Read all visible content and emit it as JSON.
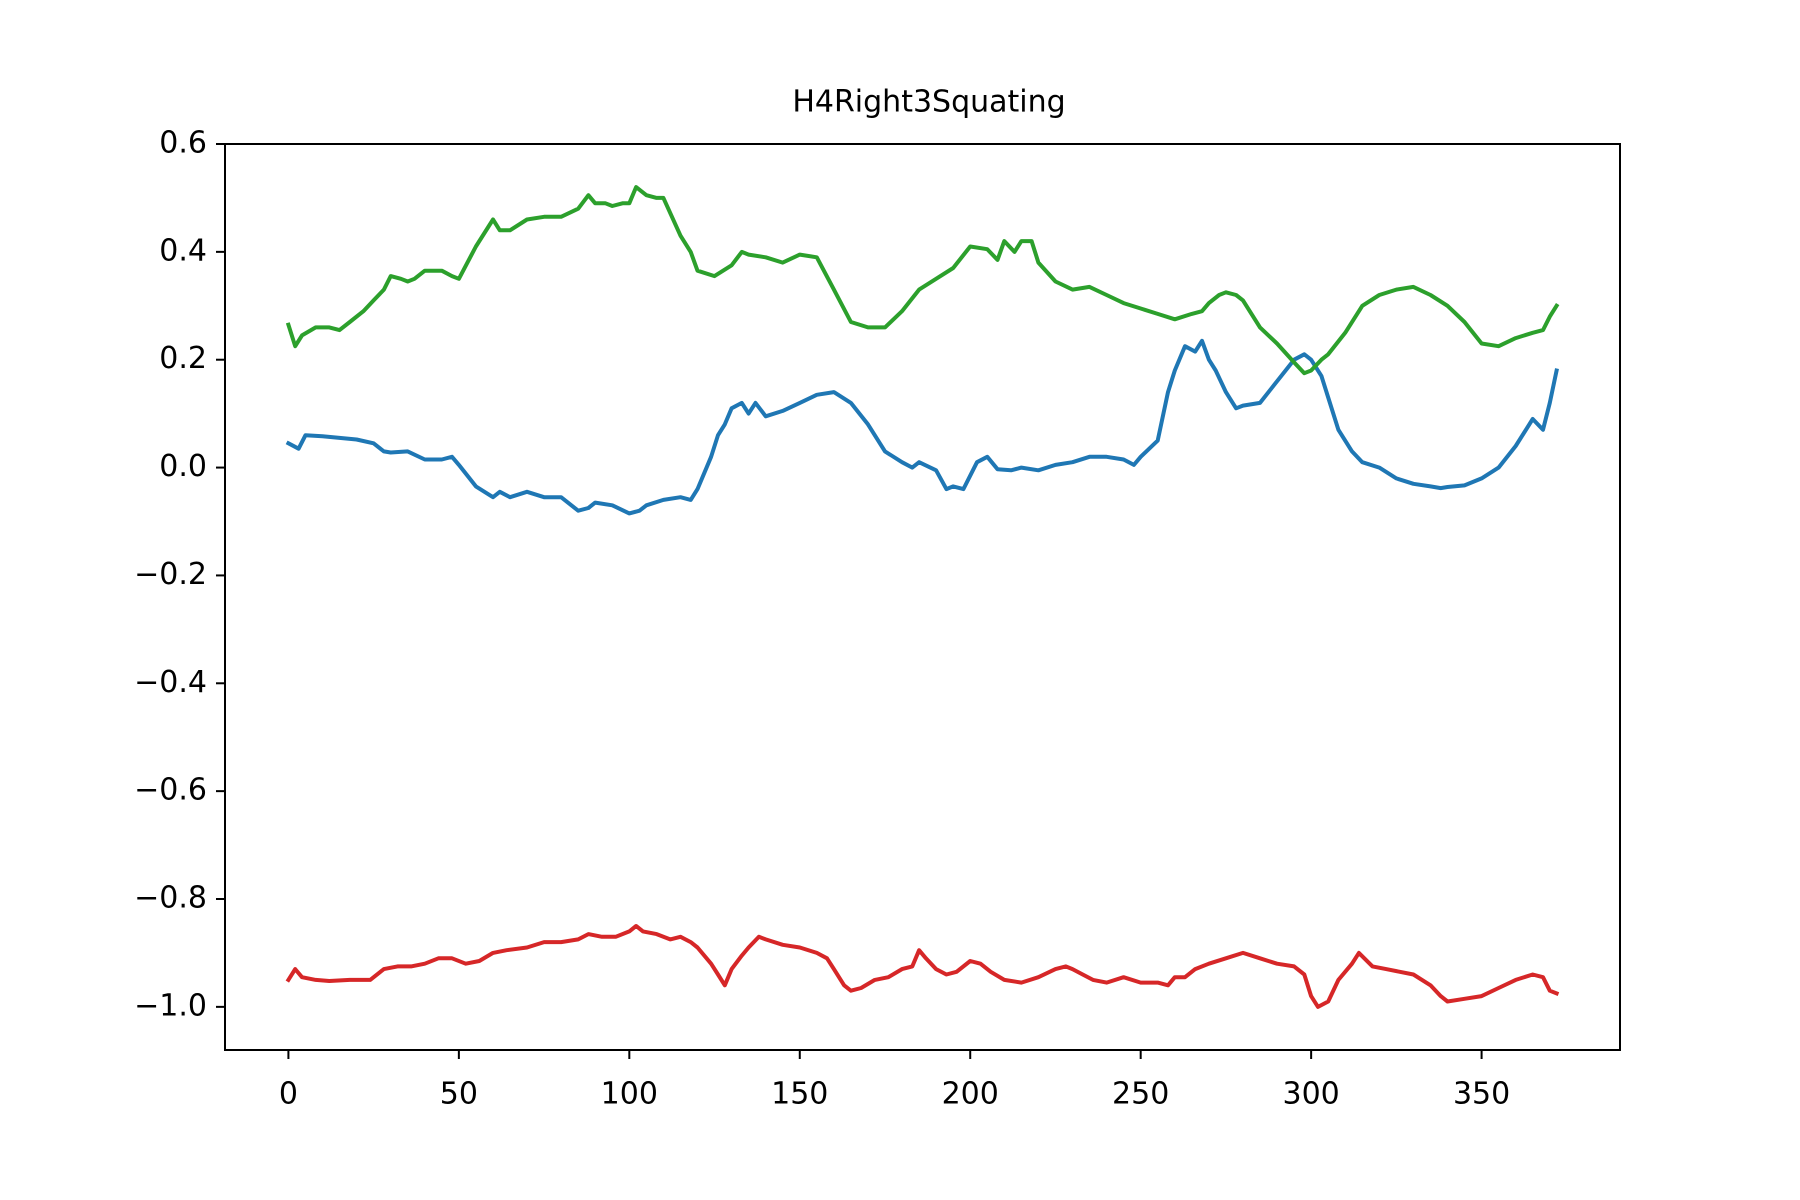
{
  "chart_data": {
    "type": "line",
    "title": "H4Right3Squating",
    "xlabel": "",
    "ylabel": "",
    "xlim": [
      -18.6,
      390.6
    ],
    "ylim": [
      -1.08,
      0.6
    ],
    "x_ticks": [
      0,
      50,
      100,
      150,
      200,
      250,
      300,
      350
    ],
    "y_ticks": [
      -1.0,
      -0.8,
      -0.6,
      -0.4,
      -0.2,
      0.0,
      0.2,
      0.4,
      0.6
    ],
    "x_tick_labels": [
      "0",
      "50",
      "100",
      "150",
      "200",
      "250",
      "300",
      "350"
    ],
    "y_tick_labels": [
      "−1.0",
      "−0.8",
      "−0.6",
      "−0.4",
      "−0.2",
      "0.0",
      "0.2",
      "0.4",
      "0.6"
    ],
    "grid": false,
    "legend": "none",
    "series": [
      {
        "color": "#1f77b4",
        "x": [
          0,
          3,
          5,
          10,
          15,
          20,
          25,
          28,
          30,
          35,
          40,
          45,
          48,
          50,
          55,
          60,
          62,
          65,
          70,
          75,
          80,
          85,
          88,
          90,
          95,
          100,
          103,
          105,
          110,
          115,
          118,
          120,
          124,
          126,
          128,
          130,
          133,
          135,
          137,
          140,
          145,
          150,
          155,
          160,
          165,
          170,
          175,
          180,
          183,
          185,
          190,
          193,
          195,
          198,
          202,
          205,
          208,
          212,
          215,
          220,
          225,
          230,
          235,
          240,
          245,
          248,
          250,
          255,
          258,
          260,
          263,
          266,
          268,
          270,
          272,
          275,
          278,
          280,
          285,
          290,
          295,
          298,
          300,
          303,
          305,
          308,
          312,
          315,
          320,
          325,
          330,
          335,
          338,
          340,
          345,
          350,
          355,
          360,
          365,
          368,
          370,
          372
        ],
        "y": [
          0.045,
          0.035,
          0.06,
          0.058,
          0.055,
          0.052,
          0.045,
          0.03,
          0.028,
          0.03,
          0.015,
          0.015,
          0.02,
          0.005,
          -0.035,
          -0.055,
          -0.045,
          -0.055,
          -0.045,
          -0.055,
          -0.055,
          -0.08,
          -0.075,
          -0.065,
          -0.07,
          -0.085,
          -0.08,
          -0.07,
          -0.06,
          -0.055,
          -0.06,
          -0.04,
          0.02,
          0.06,
          0.08,
          0.11,
          0.12,
          0.1,
          0.12,
          0.095,
          0.105,
          0.12,
          0.135,
          0.14,
          0.12,
          0.08,
          0.03,
          0.01,
          0.0,
          0.01,
          -0.005,
          -0.04,
          -0.035,
          -0.04,
          0.01,
          0.02,
          -0.003,
          -0.005,
          0.0,
          -0.005,
          0.005,
          0.01,
          0.02,
          0.02,
          0.015,
          0.005,
          0.02,
          0.05,
          0.14,
          0.18,
          0.225,
          0.215,
          0.235,
          0.2,
          0.18,
          0.14,
          0.11,
          0.115,
          0.12,
          0.16,
          0.2,
          0.21,
          0.2,
          0.17,
          0.13,
          0.07,
          0.03,
          0.01,
          0.0,
          -0.02,
          -0.03,
          -0.035,
          -0.038,
          -0.036,
          -0.033,
          -0.02,
          0.0,
          0.04,
          0.09,
          0.07,
          0.12,
          0.18
        ]
      },
      {
        "color": "#2ca02c",
        "x": [
          0,
          2,
          4,
          8,
          12,
          15,
          18,
          22,
          25,
          28,
          30,
          33,
          35,
          37,
          40,
          45,
          48,
          50,
          55,
          60,
          62,
          65,
          70,
          75,
          80,
          85,
          88,
          90,
          93,
          95,
          98,
          100,
          102,
          105,
          108,
          110,
          115,
          118,
          120,
          125,
          130,
          133,
          135,
          140,
          145,
          150,
          155,
          160,
          165,
          170,
          175,
          180,
          185,
          190,
          195,
          200,
          205,
          208,
          210,
          213,
          215,
          218,
          220,
          225,
          230,
          235,
          240,
          245,
          250,
          255,
          260,
          265,
          268,
          270,
          273,
          275,
          278,
          280,
          285,
          290,
          295,
          298,
          300,
          303,
          305,
          310,
          315,
          320,
          325,
          330,
          335,
          340,
          345,
          350,
          355,
          360,
          365,
          368,
          370,
          372
        ],
        "y": [
          0.265,
          0.225,
          0.245,
          0.26,
          0.26,
          0.255,
          0.27,
          0.29,
          0.31,
          0.33,
          0.355,
          0.35,
          0.345,
          0.35,
          0.365,
          0.365,
          0.355,
          0.35,
          0.41,
          0.46,
          0.44,
          0.44,
          0.46,
          0.465,
          0.465,
          0.48,
          0.505,
          0.49,
          0.49,
          0.485,
          0.49,
          0.49,
          0.52,
          0.505,
          0.5,
          0.5,
          0.43,
          0.4,
          0.365,
          0.355,
          0.375,
          0.4,
          0.395,
          0.39,
          0.38,
          0.395,
          0.39,
          0.33,
          0.27,
          0.26,
          0.26,
          0.29,
          0.33,
          0.35,
          0.37,
          0.41,
          0.405,
          0.385,
          0.42,
          0.4,
          0.42,
          0.42,
          0.38,
          0.345,
          0.33,
          0.335,
          0.32,
          0.305,
          0.295,
          0.285,
          0.275,
          0.285,
          0.29,
          0.305,
          0.32,
          0.325,
          0.32,
          0.31,
          0.26,
          0.23,
          0.195,
          0.175,
          0.18,
          0.2,
          0.21,
          0.25,
          0.3,
          0.32,
          0.33,
          0.335,
          0.32,
          0.3,
          0.27,
          0.23,
          0.225,
          0.24,
          0.25,
          0.255,
          0.28,
          0.3
        ]
      },
      {
        "color": "#d62728",
        "x": [
          0,
          2,
          4,
          8,
          12,
          18,
          24,
          28,
          32,
          36,
          40,
          44,
          48,
          52,
          56,
          60,
          64,
          70,
          75,
          80,
          85,
          88,
          92,
          96,
          100,
          102,
          104,
          108,
          112,
          115,
          118,
          120,
          124,
          126,
          128,
          130,
          133,
          135,
          138,
          140,
          145,
          150,
          155,
          158,
          160,
          163,
          165,
          168,
          172,
          176,
          180,
          183,
          185,
          187,
          190,
          193,
          196,
          200,
          203,
          206,
          210,
          215,
          220,
          225,
          228,
          230,
          233,
          236,
          240,
          245,
          250,
          255,
          258,
          260,
          263,
          266,
          270,
          275,
          280,
          285,
          290,
          295,
          298,
          300,
          302,
          305,
          308,
          312,
          314,
          318,
          322,
          326,
          330,
          335,
          338,
          340,
          345,
          350,
          355,
          360,
          365,
          368,
          370,
          372
        ],
        "y": [
          -0.95,
          -0.93,
          -0.945,
          -0.95,
          -0.952,
          -0.95,
          -0.95,
          -0.93,
          -0.925,
          -0.925,
          -0.92,
          -0.91,
          -0.91,
          -0.92,
          -0.915,
          -0.9,
          -0.895,
          -0.89,
          -0.88,
          -0.88,
          -0.875,
          -0.865,
          -0.87,
          -0.87,
          -0.86,
          -0.85,
          -0.86,
          -0.865,
          -0.875,
          -0.87,
          -0.88,
          -0.89,
          -0.92,
          -0.94,
          -0.96,
          -0.93,
          -0.905,
          -0.89,
          -0.87,
          -0.875,
          -0.885,
          -0.89,
          -0.9,
          -0.91,
          -0.93,
          -0.96,
          -0.97,
          -0.965,
          -0.95,
          -0.945,
          -0.93,
          -0.925,
          -0.895,
          -0.91,
          -0.93,
          -0.94,
          -0.935,
          -0.915,
          -0.92,
          -0.935,
          -0.95,
          -0.955,
          -0.945,
          -0.93,
          -0.925,
          -0.93,
          -0.94,
          -0.95,
          -0.955,
          -0.945,
          -0.955,
          -0.955,
          -0.96,
          -0.945,
          -0.945,
          -0.93,
          -0.92,
          -0.91,
          -0.9,
          -0.91,
          -0.92,
          -0.925,
          -0.94,
          -0.98,
          -1.0,
          -0.99,
          -0.95,
          -0.92,
          -0.9,
          -0.925,
          -0.93,
          -0.935,
          -0.94,
          -0.96,
          -0.98,
          -0.99,
          -0.985,
          -0.98,
          -0.965,
          -0.95,
          -0.94,
          -0.945,
          -0.97,
          -0.975
        ]
      }
    ]
  }
}
